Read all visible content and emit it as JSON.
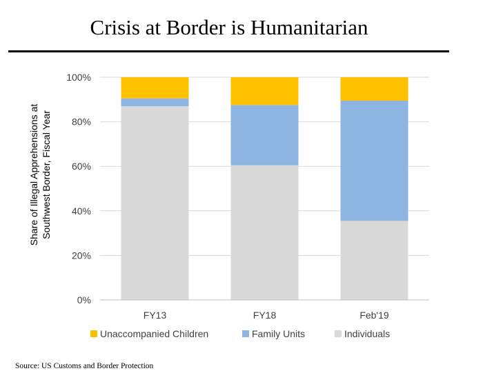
{
  "title": "Crisis at Border is Humanitarian",
  "source": "Source: US Customs and Border Protection",
  "chart_data": {
    "type": "bar",
    "stacked": true,
    "categories": [
      "FY13",
      "FY18",
      "Feb'19"
    ],
    "series": [
      {
        "name": "Individuals",
        "color": "#d9d9d9",
        "values": [
          87,
          60.5,
          35.5
        ]
      },
      {
        "name": "Family Units",
        "color": "#8eb4e3",
        "values": [
          3.5,
          27,
          54
        ]
      },
      {
        "name": "Unaccompanied Children",
        "color": "#ffc000",
        "values": [
          9.5,
          12.5,
          10.5
        ]
      }
    ],
    "legend_order": [
      "Unaccompanied Children",
      "Family Units",
      "Individuals"
    ],
    "legend_position": "bottom",
    "title": "",
    "xlabel": "",
    "ylabel": "Share of Illegal Apprehensions at Southwest Border, Fiscal Year",
    "ylabel_lines": [
      "Share of Illegal Apprehensions at",
      "Southwest Border, Fiscal Year"
    ],
    "ylim": [
      0,
      100
    ],
    "yticks": [
      0,
      20,
      40,
      60,
      80,
      100
    ],
    "ytick_labels": [
      "0%",
      "20%",
      "40%",
      "60%",
      "80%",
      "100%"
    ],
    "grid": true
  }
}
